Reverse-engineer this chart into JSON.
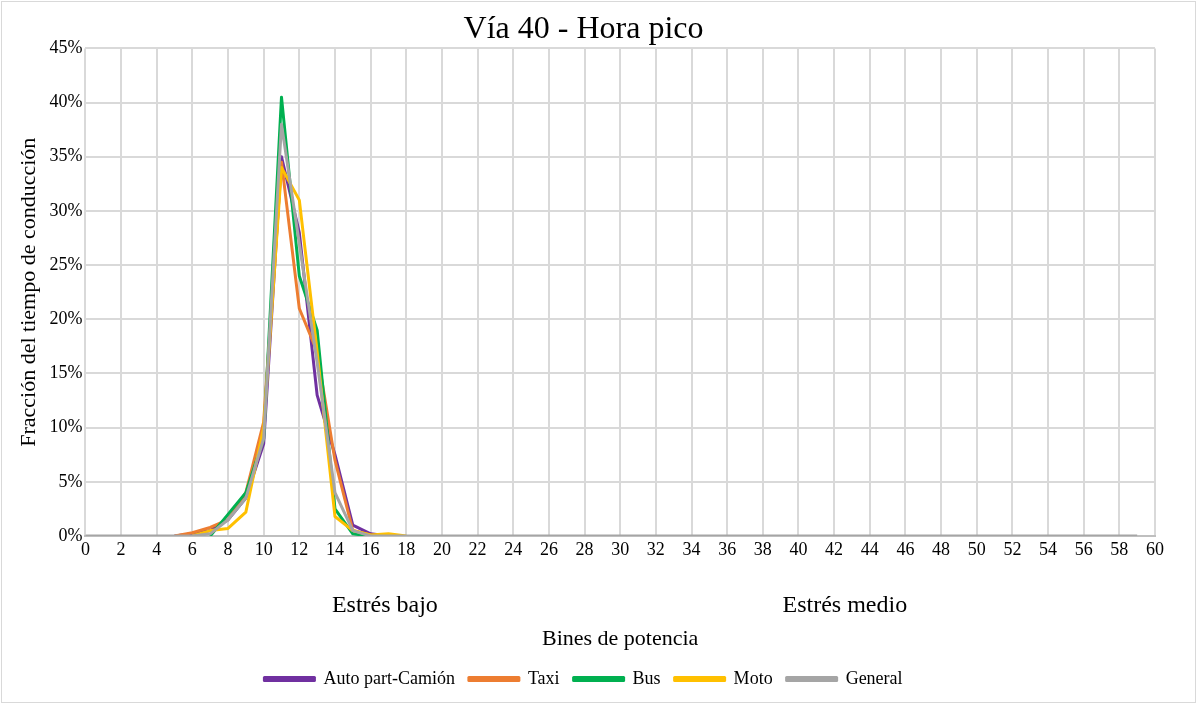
{
  "chart_data": {
    "type": "line",
    "title": "Vía 40 - Hora pico",
    "xlabel": "Bines de potencia",
    "ylabel": "Fracción del tiempo de conducción",
    "annotations": [
      "Estrés bajo",
      "Estrés medio"
    ],
    "x": [
      0,
      1,
      2,
      3,
      4,
      5,
      6,
      7,
      8,
      9,
      10,
      11,
      12,
      13,
      14,
      15,
      16,
      17,
      18,
      19,
      20,
      21,
      22,
      23,
      24,
      25,
      26,
      27,
      28,
      29,
      30,
      31,
      32,
      33,
      34,
      35,
      36,
      37,
      38,
      39,
      40,
      41,
      42,
      43,
      44,
      45,
      46,
      47,
      48,
      49,
      50,
      51,
      52,
      53,
      54,
      55,
      56,
      57,
      58,
      59
    ],
    "series": [
      {
        "name": "Auto part-Camión",
        "color": "#7030a0",
        "values": [
          null,
          null,
          null,
          null,
          null,
          0,
          0.2,
          0.5,
          1.5,
          3.5,
          8.5,
          35,
          28,
          13,
          7.5,
          1,
          0.2,
          0,
          null,
          null,
          null,
          null,
          null,
          null,
          null,
          null,
          null,
          null,
          null,
          null,
          null,
          null,
          null,
          null,
          null,
          null,
          null,
          null,
          null,
          null,
          null,
          null,
          null,
          null,
          null,
          null,
          null,
          null,
          null,
          null,
          null,
          null,
          null,
          null,
          null,
          null,
          null,
          null,
          null,
          null
        ]
      },
      {
        "name": "Taxi",
        "color": "#ed7d31",
        "values": [
          null,
          null,
          null,
          null,
          null,
          0,
          0.3,
          0.8,
          1.5,
          4,
          10.5,
          34.5,
          21,
          17,
          7,
          0.5,
          0.1,
          0,
          null,
          null,
          null,
          null,
          null,
          null,
          null,
          null,
          null,
          null,
          null,
          null,
          null,
          null,
          null,
          null,
          null,
          null,
          null,
          null,
          null,
          null,
          null,
          null,
          null,
          null,
          null,
          null,
          null,
          null,
          null,
          null,
          null,
          null,
          null,
          null,
          null,
          null,
          null,
          null,
          null,
          null
        ]
      },
      {
        "name": "Bus",
        "color": "#00b050",
        "values": [
          null,
          null,
          null,
          null,
          null,
          null,
          null,
          0,
          2,
          4,
          9,
          40.5,
          24,
          19,
          2.5,
          0.2,
          0,
          null,
          null,
          null,
          null,
          null,
          null,
          null,
          null,
          null,
          null,
          null,
          null,
          null,
          null,
          null,
          null,
          null,
          null,
          null,
          null,
          null,
          null,
          null,
          null,
          null,
          null,
          null,
          null,
          null,
          null,
          null,
          null,
          null,
          null,
          null,
          null,
          null,
          null,
          null,
          null,
          null,
          null,
          null
        ]
      },
      {
        "name": "Moto",
        "color": "#ffc000",
        "values": [
          null,
          null,
          null,
          null,
          null,
          null,
          0,
          0.5,
          0.7,
          2.2,
          10,
          34,
          31,
          17,
          1.8,
          0.5,
          0.1,
          0.2,
          0,
          null,
          null,
          null,
          null,
          null,
          null,
          null,
          null,
          null,
          null,
          null,
          null,
          null,
          null,
          null,
          null,
          null,
          null,
          null,
          null,
          null,
          null,
          null,
          null,
          null,
          null,
          null,
          null,
          null,
          null,
          null,
          null,
          null,
          null,
          null,
          null,
          null,
          null,
          null,
          null,
          null
        ]
      },
      {
        "name": "General",
        "color": "#a5a5a5",
        "values": [
          0,
          0,
          0,
          0,
          0,
          0,
          0,
          0.2,
          1.5,
          3.5,
          9,
          38,
          27,
          16,
          4,
          0.5,
          0,
          0,
          0,
          0,
          0,
          0,
          0,
          0,
          0,
          0,
          0,
          0,
          0,
          0,
          0,
          0,
          0,
          0,
          0,
          0,
          0,
          0,
          0,
          0,
          0,
          0,
          0,
          0,
          0,
          0,
          0,
          0,
          0,
          0,
          0,
          0,
          0,
          0,
          0,
          0,
          0,
          0,
          0,
          0
        ]
      }
    ],
    "xlim": [
      0,
      60
    ],
    "xticks": [
      0,
      2,
      4,
      6,
      8,
      10,
      12,
      14,
      16,
      18,
      20,
      22,
      24,
      26,
      28,
      30,
      32,
      34,
      36,
      38,
      40,
      42,
      44,
      46,
      48,
      50,
      52,
      54,
      56,
      58,
      60
    ],
    "ylim": [
      0,
      45
    ],
    "yticks": [
      {
        "value": 0,
        "label": "0%"
      },
      {
        "value": 5,
        "label": "5%"
      },
      {
        "value": 10,
        "label": "10%"
      },
      {
        "value": 15,
        "label": "15%"
      },
      {
        "value": 20,
        "label": "20%"
      },
      {
        "value": 25,
        "label": "25%"
      },
      {
        "value": 30,
        "label": "30%"
      },
      {
        "value": 35,
        "label": "35%"
      },
      {
        "value": 40,
        "label": "40%"
      },
      {
        "value": 45,
        "label": "45%"
      }
    ],
    "grid": true,
    "legend": "bottom",
    "marker": "none",
    "line_style": "solid"
  }
}
